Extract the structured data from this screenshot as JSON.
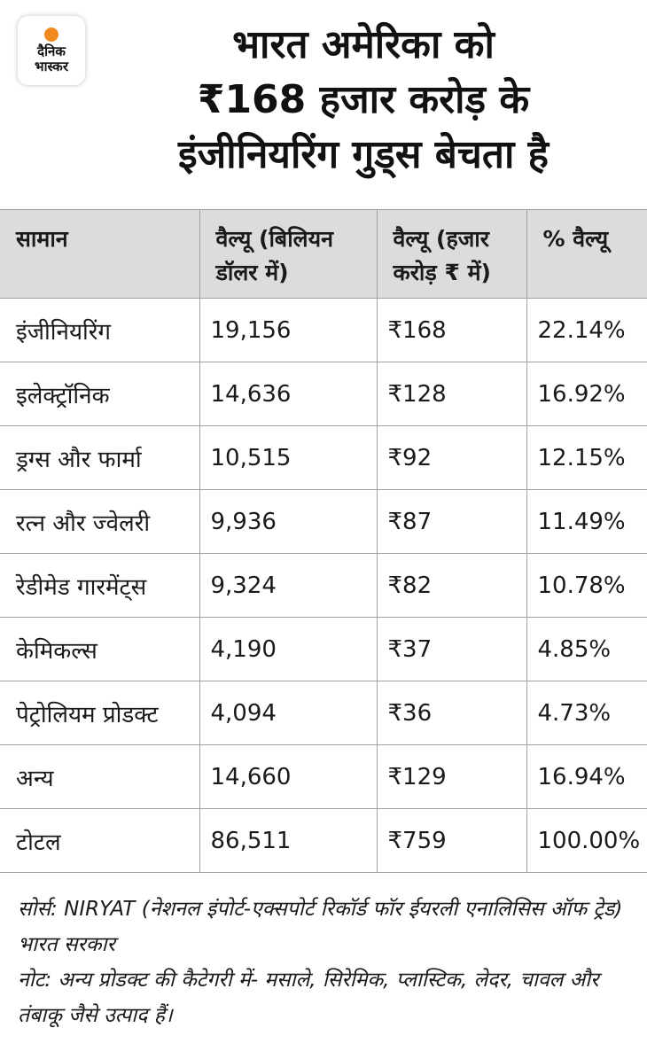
{
  "brand": {
    "line1": "दैनिक",
    "line2": "भास्कर",
    "accent": "#f08a1e"
  },
  "title": {
    "line1": "भारत अमेरिका को",
    "line2": "₹168 हजार करोड़ के",
    "line3": "इंजीनियरिंग गुड्स बेचता है"
  },
  "table": {
    "headers": [
      "सामान",
      "वैल्यू (बिलियन डॉलर में)",
      "वैल्यू (हजार करोड़ ₹ में)",
      "% वैल्यू"
    ],
    "rows": [
      [
        "इंजीनियरिंग",
        "19,156",
        "₹168",
        "22.14%"
      ],
      [
        "इलेक्ट्रॉनिक",
        "14,636",
        "₹128",
        "16.92%"
      ],
      [
        "ड्रग्स और फार्मा",
        "10,515",
        "₹92",
        "12.15%"
      ],
      [
        "रत्न और ज्वेलरी",
        "9,936",
        "₹87",
        "11.49%"
      ],
      [
        "रेडीमेड गारमेंट्स",
        "9,324",
        "₹82",
        "10.78%"
      ],
      [
        "केमिकल्स",
        "4,190",
        "₹37",
        "4.85%"
      ],
      [
        "पेट्रोलियम प्रोडक्ट",
        "4,094",
        "₹36",
        "4.73%"
      ],
      [
        "अन्य",
        "14,660",
        "₹129",
        "16.94%"
      ],
      [
        "टोटल",
        "86,511",
        "₹759",
        "100.00%"
      ]
    ],
    "header_bg": "#dcdcdc"
  },
  "notes": {
    "source": "सोर्स: NIRYAT (नेशनल इंपोर्ट-एक्सपोर्ट रिकॉर्ड फॉर ईयरली एनालिसिस ऑफ ट्रेड) भारत सरकार",
    "note": "नोट: अन्य प्रोडक्ट की कैटेगरी में- मसाले, सिरेमिक, प्लास्टिक, लेदर, चावल और तंबाकू जैसे उत्पाद हैं।"
  }
}
